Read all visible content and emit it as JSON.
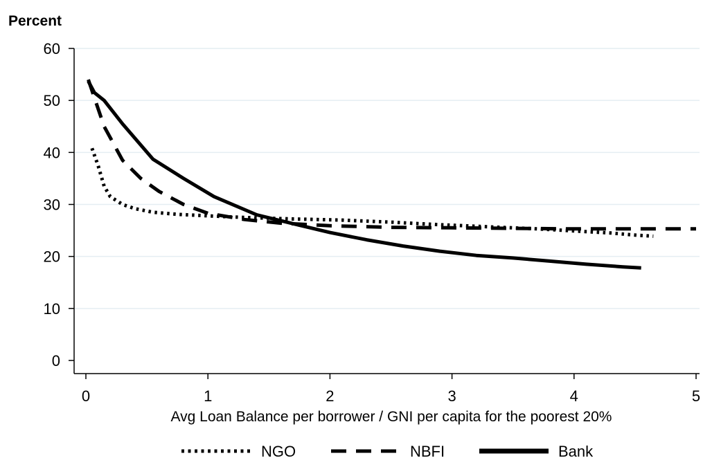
{
  "chart_data": {
    "type": "line",
    "ylabel": "Percent",
    "xlabel": "Avg Loan Balance per borrower / GNI per capita for the poorest 20%",
    "xlim": [
      0,
      5
    ],
    "ylim": [
      0,
      60
    ],
    "xticks": [
      0,
      1,
      2,
      3,
      4,
      5
    ],
    "yticks": [
      0,
      10,
      20,
      30,
      40,
      50,
      60
    ],
    "grid": "horizontal",
    "legend_position": "bottom",
    "series": [
      {
        "name": "NGO",
        "style": "dotted",
        "color": "#000000",
        "x": [
          0.05,
          0.1,
          0.15,
          0.2,
          0.3,
          0.4,
          0.55,
          0.75,
          1.0,
          1.3,
          1.7,
          2.1,
          2.5,
          2.9,
          3.3,
          3.7,
          4.0,
          4.3,
          4.5,
          4.65
        ],
        "y": [
          40.8,
          37.5,
          33.5,
          31.5,
          30.0,
          29.2,
          28.5,
          28.1,
          27.8,
          27.5,
          27.2,
          27.0,
          26.6,
          26.1,
          25.7,
          25.3,
          24.9,
          24.5,
          24.1,
          23.9
        ]
      },
      {
        "name": "NBFI",
        "style": "dashed",
        "color": "#000000",
        "x": [
          0.02,
          0.07,
          0.15,
          0.3,
          0.45,
          0.6,
          0.8,
          1.0,
          1.3,
          1.6,
          2.0,
          2.5,
          3.0,
          3.5,
          4.0,
          4.5,
          5.0
        ],
        "y": [
          54.0,
          50.5,
          45.0,
          38.5,
          35.0,
          32.5,
          30.0,
          28.3,
          27.1,
          26.4,
          25.9,
          25.6,
          25.5,
          25.4,
          25.3,
          25.3,
          25.3
        ]
      },
      {
        "name": "Bank",
        "style": "solid",
        "color": "#000000",
        "x": [
          0.02,
          0.07,
          0.15,
          0.3,
          0.55,
          0.8,
          1.05,
          1.4,
          1.75,
          2.0,
          2.3,
          2.6,
          2.9,
          3.2,
          3.5,
          3.8,
          4.1,
          4.4,
          4.55
        ],
        "y": [
          53.7,
          51.5,
          50.0,
          45.5,
          38.7,
          35.0,
          31.5,
          28.0,
          26.0,
          24.6,
          23.2,
          22.0,
          21.0,
          20.2,
          19.7,
          19.1,
          18.5,
          18.0,
          17.8
        ]
      }
    ]
  }
}
